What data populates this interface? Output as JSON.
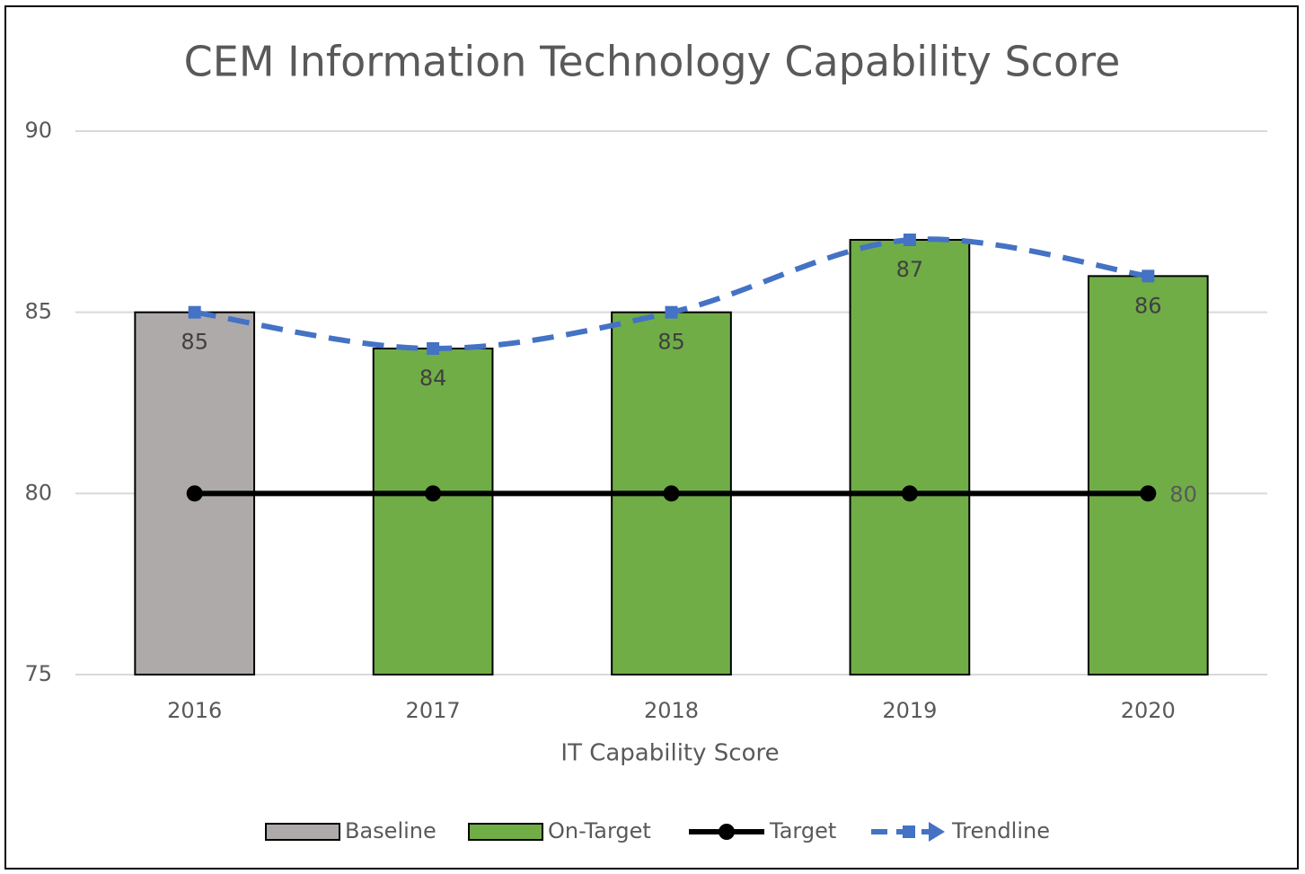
{
  "chart_data": {
    "type": "bar",
    "title": "CEM Information Technology Capability Score",
    "x_label": "IT Capability Score",
    "categories": [
      "2016",
      "2017",
      "2018",
      "2019",
      "2020"
    ],
    "series": [
      {
        "name": "Baseline",
        "type": "bar",
        "color": "#aeaaaa",
        "data_labels": "inside_end",
        "values": [
          85,
          null,
          null,
          null,
          null
        ]
      },
      {
        "name": "On-Target",
        "type": "bar",
        "color": "#70ad47",
        "data_labels": "inside_end",
        "values": [
          null,
          84,
          85,
          87,
          86
        ]
      },
      {
        "name": "Target",
        "type": "line",
        "color": "#000000",
        "marker": "circle",
        "data_labels": "last",
        "values": [
          80,
          80,
          80,
          80,
          80
        ]
      },
      {
        "name": "Trendline",
        "type": "line",
        "color": "#4472c4",
        "style": "dashed",
        "smooth": true,
        "marker": "square",
        "data_labels": "none",
        "values": [
          85,
          84,
          85,
          87,
          86
        ]
      }
    ],
    "ylim": [
      75,
      90
    ],
    "yticks": [
      75,
      80,
      85,
      90
    ],
    "grid": true,
    "legend": "bottom"
  }
}
